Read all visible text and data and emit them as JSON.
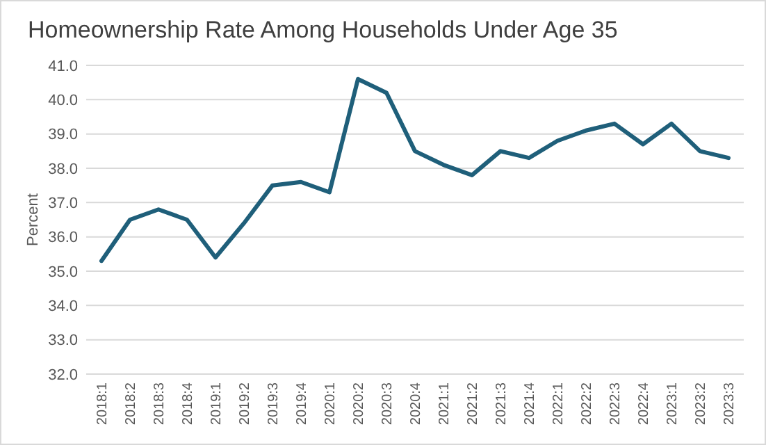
{
  "chart_data": {
    "type": "line",
    "title": "Homeownership Rate Among Households Under Age 35",
    "ylabel": "Percent",
    "categories": [
      "2018:1",
      "2018:2",
      "2018:3",
      "2018:4",
      "2019:1",
      "2019:2",
      "2019:3",
      "2019:4",
      "2020:1",
      "2020:2",
      "2020:3",
      "2020:4",
      "2021:1",
      "2021:2",
      "2021:3",
      "2021:4",
      "2022:1",
      "2022:2",
      "2022:3",
      "2022:4",
      "2023:1",
      "2023:2",
      "2023:3"
    ],
    "series": [
      {
        "color": "#1f5f7a",
        "values": [
          35.3,
          36.5,
          36.8,
          36.5,
          35.4,
          36.4,
          37.5,
          37.6,
          37.3,
          40.6,
          40.2,
          38.5,
          38.1,
          37.8,
          38.5,
          38.3,
          38.8,
          39.1,
          39.3,
          38.7,
          39.3,
          38.5,
          38.3
        ]
      }
    ],
    "ylim": [
      32,
      41
    ],
    "yticks": [
      {
        "value": 32,
        "label": "32.0"
      },
      {
        "value": 33,
        "label": "33.0"
      },
      {
        "value": 34,
        "label": "34.0"
      },
      {
        "value": 35,
        "label": "35.0"
      },
      {
        "value": 36,
        "label": "36.0"
      },
      {
        "value": 37,
        "label": "37.0"
      },
      {
        "value": 38,
        "label": "38.0"
      },
      {
        "value": 39,
        "label": "39.0"
      },
      {
        "value": 40,
        "label": "40.0"
      },
      {
        "value": 41,
        "label": "41.0"
      }
    ],
    "grid": "y",
    "marker": "none",
    "line_style": "solid"
  }
}
